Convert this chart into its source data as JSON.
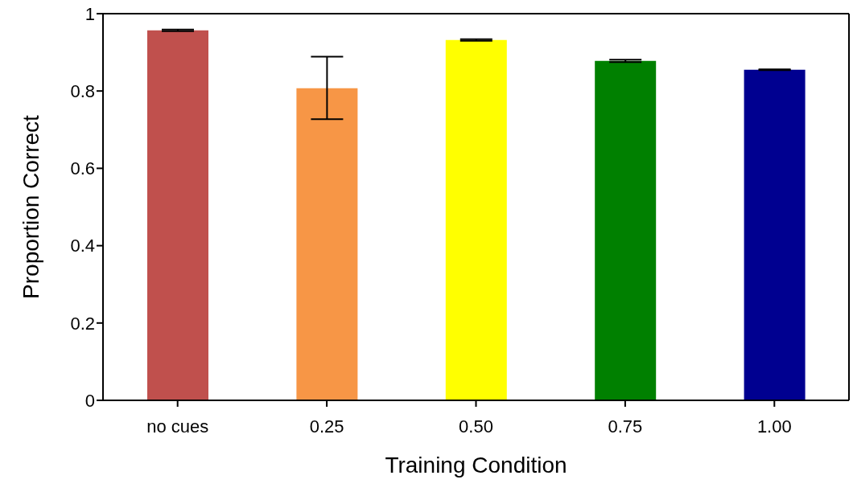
{
  "chart_data": {
    "type": "bar",
    "xlabel": "Training Condition",
    "ylabel": "Proportion Correct",
    "categories": [
      "no cues",
      "0.25",
      "0.50",
      "0.75",
      "1.00"
    ],
    "values": [
      0.957,
      0.807,
      0.932,
      0.878,
      0.855
    ],
    "colors": [
      "#c0504d",
      "#f79646",
      "#ffff00",
      "#008000",
      "#000090"
    ],
    "errors": [
      0.002,
      [
        0.727,
        0.889
      ],
      0.002,
      0.003,
      0.001
    ],
    "ylim": [
      0,
      1
    ],
    "yticks": [
      0,
      0.2,
      0.4,
      0.6,
      0.8,
      1
    ],
    "grid": false,
    "legend": false
  }
}
